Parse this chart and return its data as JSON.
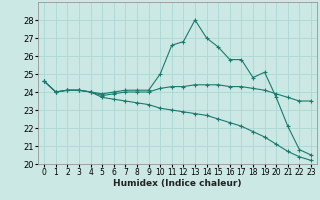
{
  "xlabel": "Humidex (Indice chaleur)",
  "background_color": "#cce8e4",
  "grid_color": "#aad8d4",
  "line_color": "#1a7a6e",
  "xlim": [
    -0.5,
    23.5
  ],
  "ylim": [
    20,
    29
  ],
  "yticks": [
    20,
    21,
    22,
    23,
    24,
    25,
    26,
    27,
    28
  ],
  "xticks": [
    0,
    1,
    2,
    3,
    4,
    5,
    6,
    7,
    8,
    9,
    10,
    11,
    12,
    13,
    14,
    15,
    16,
    17,
    18,
    19,
    20,
    21,
    22,
    23
  ],
  "series": [
    {
      "x": [
        0,
        1,
        2,
        3,
        4,
        5,
        6,
        7,
        8,
        9,
        10,
        11,
        12,
        13,
        14,
        15,
        16,
        17,
        18,
        19,
        20,
        21,
        22,
        23
      ],
      "y": [
        24.6,
        24.0,
        24.1,
        24.1,
        24.0,
        23.9,
        24.0,
        24.1,
        24.1,
        24.1,
        25.0,
        26.6,
        26.8,
        28.0,
        27.0,
        26.5,
        25.8,
        25.8,
        24.8,
        25.1,
        23.7,
        22.1,
        20.8,
        20.5
      ]
    },
    {
      "x": [
        0,
        1,
        2,
        3,
        4,
        5,
        6,
        7,
        8,
        9,
        10,
        11,
        12,
        13,
        14,
        15,
        16,
        17,
        18,
        19,
        20,
        21,
        22,
        23
      ],
      "y": [
        24.6,
        24.0,
        24.1,
        24.1,
        24.0,
        23.8,
        23.9,
        24.0,
        24.0,
        24.0,
        24.2,
        24.3,
        24.3,
        24.4,
        24.4,
        24.4,
        24.3,
        24.3,
        24.2,
        24.1,
        23.9,
        23.7,
        23.5,
        23.5
      ]
    },
    {
      "x": [
        0,
        1,
        2,
        3,
        4,
        5,
        6,
        7,
        8,
        9,
        10,
        11,
        12,
        13,
        14,
        15,
        16,
        17,
        18,
        19,
        20,
        21,
        22,
        23
      ],
      "y": [
        24.6,
        24.0,
        24.1,
        24.1,
        24.0,
        23.7,
        23.6,
        23.5,
        23.4,
        23.3,
        23.1,
        23.0,
        22.9,
        22.8,
        22.7,
        22.5,
        22.3,
        22.1,
        21.8,
        21.5,
        21.1,
        20.7,
        20.4,
        20.2
      ]
    }
  ]
}
